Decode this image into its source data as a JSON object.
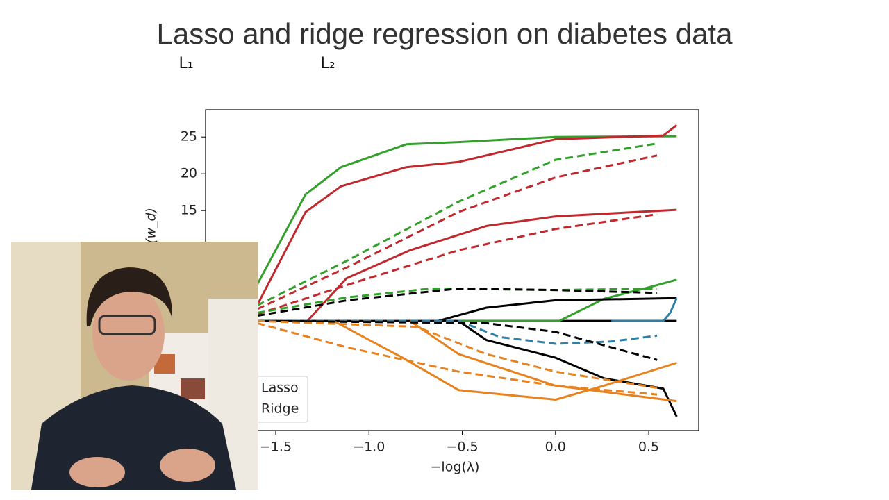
{
  "chart_data": {
    "type": "line",
    "title": "Lasso and ridge regression on diabetes data",
    "annotations": [
      "L₁",
      "L₂"
    ],
    "xlabel": "−log(λ)",
    "ylabel": "(w_d)",
    "xlim": [
      -1.876,
      0.768
    ],
    "ylim": [
      -14.9,
      28.7
    ],
    "xticks": [
      {
        "value": -1.5,
        "label": "−1.5"
      },
      {
        "value": -1.0,
        "label": "−1.0"
      },
      {
        "value": -0.5,
        "label": "−0.5"
      },
      {
        "value": 0.0,
        "label": "0.0"
      },
      {
        "value": 0.5,
        "label": "0.5"
      }
    ],
    "yticks": [
      15,
      20,
      25
    ],
    "legend": [
      {
        "label": "Lasso",
        "dash": false
      },
      {
        "label": "Ridge",
        "dash": true
      }
    ],
    "legend_position": "lower left",
    "series": [
      {
        "color": "#33a02c",
        "dash": false,
        "x": [
          -1.6,
          -1.34,
          -1.15,
          -0.8,
          -0.52,
          0.0,
          0.65
        ],
        "values": [
          4.9,
          17.2,
          20.9,
          24.0,
          24.3,
          25.0,
          25.1
        ]
      },
      {
        "color": "#c0282d",
        "dash": false,
        "x": [
          -1.6,
          -1.34,
          -1.15,
          -0.8,
          -0.52,
          0.0,
          0.578,
          0.65
        ],
        "values": [
          2.1,
          14.8,
          18.3,
          20.9,
          21.6,
          24.7,
          25.2,
          26.6
        ]
      },
      {
        "color": "#c0282d",
        "dash": false,
        "x": [
          -1.33,
          -1.12,
          -0.78,
          -0.37,
          0.0,
          0.65
        ],
        "values": [
          0,
          5.8,
          9.6,
          12.9,
          14.2,
          15.1
        ]
      },
      {
        "color": "#000000",
        "dash": false,
        "x": [
          -1.6,
          0.65
        ],
        "values": [
          0,
          0
        ]
      },
      {
        "color": "#33a02c",
        "dash": false,
        "x": [
          -0.52,
          0.02,
          0.26,
          0.52,
          0.65
        ],
        "values": [
          0,
          0,
          3.0,
          4.7,
          5.6
        ]
      },
      {
        "color": "#000000",
        "dash": false,
        "x": [
          -0.63,
          -0.37,
          0.0,
          0.65
        ],
        "values": [
          0,
          1.8,
          2.8,
          3.1
        ]
      },
      {
        "color": "#2e7fa8",
        "dash": false,
        "x": [
          0.3,
          0.578,
          0.615,
          0.65
        ],
        "values": [
          0,
          0,
          1.1,
          3.1
        ]
      },
      {
        "color": "#000000",
        "dash": false,
        "x": [
          -0.52,
          -0.37,
          0.0,
          0.26,
          0.578,
          0.65
        ],
        "values": [
          0,
          -2.6,
          -5.0,
          -7.8,
          -9.2,
          -13.0
        ]
      },
      {
        "color": "#e8821e",
        "dash": false,
        "x": [
          -1.19,
          -0.82,
          -0.52,
          0.0,
          0.26,
          0.65
        ],
        "values": [
          0,
          -5.0,
          -9.4,
          -10.7,
          -8.8,
          -5.7
        ]
      },
      {
        "color": "#e8821e",
        "dash": false,
        "x": [
          -0.78,
          -0.52,
          0.0,
          0.65
        ],
        "values": [
          0,
          -4.5,
          -8.8,
          -10.9
        ]
      },
      {
        "color": "#33a02c",
        "dash": true,
        "x": [
          -1.6,
          -1.116,
          -0.52,
          0.0,
          0.545
        ],
        "values": [
          2.1,
          8.2,
          16.2,
          21.9,
          24.1
        ]
      },
      {
        "color": "#c0282d",
        "dash": true,
        "x": [
          -1.6,
          -1.116,
          -0.52,
          0.0,
          0.545
        ],
        "values": [
          1.6,
          7.3,
          14.8,
          19.5,
          22.5
        ]
      },
      {
        "color": "#c0282d",
        "dash": true,
        "x": [
          -1.6,
          -1.116,
          -0.52,
          0.0,
          0.545
        ],
        "values": [
          0.9,
          4.9,
          9.6,
          12.5,
          14.5
        ]
      },
      {
        "color": "#33a02c",
        "dash": true,
        "x": [
          -1.6,
          -1.116,
          -0.669,
          0.0,
          0.545
        ],
        "values": [
          1.1,
          3.2,
          4.4,
          4.2,
          4.4
        ]
      },
      {
        "color": "#000000",
        "dash": true,
        "x": [
          -1.6,
          -1.116,
          -0.52,
          0.0,
          0.545
        ],
        "values": [
          0.7,
          2.8,
          4.4,
          4.2,
          3.8
        ]
      },
      {
        "color": "#2e7fa8",
        "dash": true,
        "x": [
          -1.6,
          -0.52,
          -0.297,
          0.0,
          0.299,
          0.545
        ],
        "values": [
          0,
          0,
          -2.2,
          -3.1,
          -2.8,
          -2.0
        ]
      },
      {
        "color": "#000000",
        "dash": true,
        "x": [
          -1.6,
          -0.372,
          0.0,
          0.545
        ],
        "values": [
          0,
          -0.3,
          -1.5,
          -5.3
        ]
      },
      {
        "color": "#e8821e",
        "dash": true,
        "x": [
          -1.6,
          -1.116,
          -0.52,
          0.0,
          0.545
        ],
        "values": [
          -0.3,
          -3.6,
          -6.9,
          -8.8,
          -10.0
        ]
      },
      {
        "color": "#e8821e",
        "dash": true,
        "x": [
          -1.6,
          -0.744,
          -0.372,
          0.0,
          0.545
        ],
        "values": [
          0,
          -0.8,
          -4.5,
          -6.9,
          -9.1
        ]
      }
    ]
  }
}
